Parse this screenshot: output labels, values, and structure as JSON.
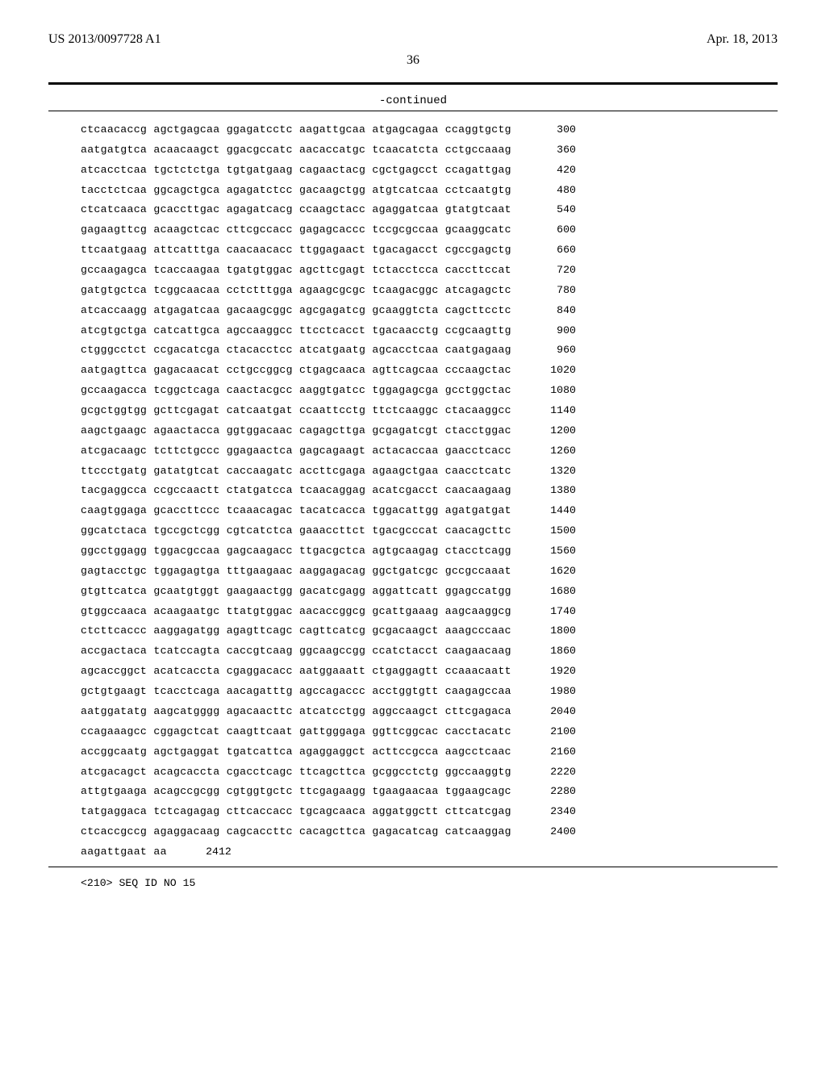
{
  "header": {
    "publication_id": "US 2013/0097728 A1",
    "publication_date": "Apr. 18, 2013"
  },
  "page_number": "36",
  "continued_label": "-continued",
  "sequence": {
    "lines": [
      {
        "seq": "ctcaacaccg agctgagcaa ggagatcctc aagattgcaa atgagcagaa ccaggtgctg",
        "pos": "300"
      },
      {
        "seq": "aatgatgtca acaacaagct ggacgccatc aacaccatgc tcaacatcta cctgccaaag",
        "pos": "360"
      },
      {
        "seq": "atcacctcaa tgctctctga tgtgatgaag cagaactacg cgctgagcct ccagattgag",
        "pos": "420"
      },
      {
        "seq": "tacctctcaa ggcagctgca agagatctcc gacaagctgg atgtcatcaa cctcaatgtg",
        "pos": "480"
      },
      {
        "seq": "ctcatcaaca gcaccttgac agagatcacg ccaagctacc agaggatcaa gtatgtcaat",
        "pos": "540"
      },
      {
        "seq": "gagaagttcg acaagctcac cttcgccacc gagagcaccc tccgcgccaa gcaaggcatc",
        "pos": "600"
      },
      {
        "seq": "ttcaatgaag attcatttga caacaacacc ttggagaact tgacagacct cgccgagctg",
        "pos": "660"
      },
      {
        "seq": "gccaagagca tcaccaagaa tgatgtggac agcttcgagt tctacctcca caccttccat",
        "pos": "720"
      },
      {
        "seq": "gatgtgctca tcggcaacaa cctctttgga agaagcgcgc tcaagacggc atcagagctc",
        "pos": "780"
      },
      {
        "seq": "atcaccaagg atgagatcaa gacaagcggc agcgagatcg gcaaggtcta cagcttcctc",
        "pos": "840"
      },
      {
        "seq": "atcgtgctga catcattgca agccaaggcc ttcctcacct tgacaacctg ccgcaagttg",
        "pos": "900"
      },
      {
        "seq": "ctgggcctct ccgacatcga ctacacctcc atcatgaatg agcacctcaa caatgagaag",
        "pos": "960"
      },
      {
        "seq": "aatgagttca gagacaacat cctgccggcg ctgagcaaca agttcagcaa cccaagctac",
        "pos": "1020"
      },
      {
        "seq": "gccaagacca tcggctcaga caactacgcc aaggtgatcc tggagagcga gcctggctac",
        "pos": "1080"
      },
      {
        "seq": "gcgctggtgg gcttcgagat catcaatgat ccaattcctg ttctcaaggc ctacaaggcc",
        "pos": "1140"
      },
      {
        "seq": "aagctgaagc agaactacca ggtggacaac cagagcttga gcgagatcgt ctacctggac",
        "pos": "1200"
      },
      {
        "seq": "atcgacaagc tcttctgccc ggagaactca gagcagaagt actacaccaa gaacctcacc",
        "pos": "1260"
      },
      {
        "seq": "ttccctgatg gatatgtcat caccaagatc accttcgaga agaagctgaa caacctcatc",
        "pos": "1320"
      },
      {
        "seq": "tacgaggcca ccgccaactt ctatgatcca tcaacaggag acatcgacct caacaagaag",
        "pos": "1380"
      },
      {
        "seq": "caagtggaga gcaccttccc tcaaacagac tacatcacca tggacattgg agatgatgat",
        "pos": "1440"
      },
      {
        "seq": "ggcatctaca tgccgctcgg cgtcatctca gaaaccttct tgacgcccat caacagcttc",
        "pos": "1500"
      },
      {
        "seq": "ggcctggagg tggacgccaa gagcaagacc ttgacgctca agtgcaagag ctacctcagg",
        "pos": "1560"
      },
      {
        "seq": "gagtacctgc tggagagtga tttgaagaac aaggagacag ggctgatcgc gccgccaaat",
        "pos": "1620"
      },
      {
        "seq": "gtgttcatca gcaatgtggt gaagaactgg gacatcgagg aggattcatt ggagccatgg",
        "pos": "1680"
      },
      {
        "seq": "gtggccaaca acaagaatgc ttatgtggac aacaccggcg gcattgaaag aagcaaggcg",
        "pos": "1740"
      },
      {
        "seq": "ctcttcaccc aaggagatgg agagttcagc cagttcatcg gcgacaagct aaagcccaac",
        "pos": "1800"
      },
      {
        "seq": "accgactaca tcatccagta caccgtcaag ggcaagccgg ccatctacct caagaacaag",
        "pos": "1860"
      },
      {
        "seq": "agcaccggct acatcaccta cgaggacacc aatggaaatt ctgaggagtt ccaaacaatt",
        "pos": "1920"
      },
      {
        "seq": "gctgtgaagt tcacctcaga aacagatttg agccagaccc acctggtgtt caagagccaa",
        "pos": "1980"
      },
      {
        "seq": "aatggatatg aagcatgggg agacaacttc atcatcctgg aggccaagct cttcgagaca",
        "pos": "2040"
      },
      {
        "seq": "ccagaaagcc cggagctcat caagttcaat gattgggaga ggttcggcac cacctacatc",
        "pos": "2100"
      },
      {
        "seq": "accggcaatg agctgaggat tgatcattca agaggaggct acttccgcca aagcctcaac",
        "pos": "2160"
      },
      {
        "seq": "atcgacagct acagcaccta cgacctcagc ttcagcttca gcggcctctg ggccaaggtg",
        "pos": "2220"
      },
      {
        "seq": "attgtgaaga acagccgcgg cgtggtgctc ttcgagaagg tgaagaacaa tggaagcagc",
        "pos": "2280"
      },
      {
        "seq": "tatgaggaca tctcagagag cttcaccacc tgcagcaaca aggatggctt cttcatcgag",
        "pos": "2340"
      },
      {
        "seq": "ctcaccgccg agaggacaag cagcaccttc cacagcttca gagacatcag catcaaggag",
        "pos": "2400"
      },
      {
        "seq": "aagattgaat aa",
        "pos": "2412"
      }
    ]
  },
  "seq_footer": "<210> SEQ ID NO 15"
}
